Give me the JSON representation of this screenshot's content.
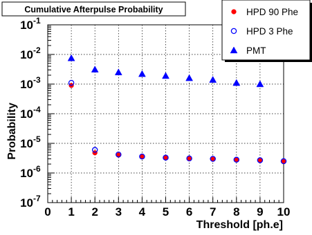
{
  "chart_data": {
    "type": "scatter",
    "title": "Cumulative Afterpulse Probability",
    "xlabel": "Threshold [ph.e]",
    "ylabel": "Probability",
    "xlim": [
      0,
      10
    ],
    "ylim": [
      1e-07,
      0.1
    ],
    "yscale": "log",
    "grid": true,
    "legend_position": "top-right",
    "x_ticks": [
      "0",
      "1",
      "2",
      "3",
      "4",
      "5",
      "6",
      "7",
      "8",
      "9",
      "10"
    ],
    "y_ticks": [
      {
        "base": "10",
        "exp": "-7",
        "value": 1e-07
      },
      {
        "base": "10",
        "exp": "-6",
        "value": 1e-06
      },
      {
        "base": "10",
        "exp": "-5",
        "value": 1e-05
      },
      {
        "base": "10",
        "exp": "-4",
        "value": 0.0001
      },
      {
        "base": "10",
        "exp": "-3",
        "value": 0.001
      },
      {
        "base": "10",
        "exp": "-2",
        "value": 0.01
      },
      {
        "base": "10",
        "exp": "-1",
        "value": 0.1
      }
    ],
    "series": [
      {
        "name": "HPD 90 Phe",
        "marker": "filled-circle",
        "color": "#ff0000",
        "x": [
          1,
          2,
          3,
          4,
          5,
          6,
          7,
          8,
          9,
          10
        ],
        "y": [
          0.0009,
          4.8e-06,
          4e-06,
          3.5e-06,
          3.2e-06,
          3e-06,
          2.9e-06,
          2.8e-06,
          2.6e-06,
          2.4e-06
        ]
      },
      {
        "name": "HPD 3 Phe",
        "marker": "open-circle",
        "color": "#0000ff",
        "x": [
          1,
          2,
          3,
          4,
          5,
          6,
          7,
          8,
          9,
          10
        ],
        "y": [
          0.0011,
          6e-06,
          4.2e-06,
          3.6e-06,
          3.3e-06,
          3.1e-06,
          3e-06,
          2.8e-06,
          2.7e-06,
          2.5e-06
        ]
      },
      {
        "name": "PMT",
        "marker": "filled-triangle",
        "color": "#0000ff",
        "x": [
          1,
          2,
          3,
          4,
          5,
          6,
          7,
          8,
          9
        ],
        "y": [
          0.0075,
          0.0031,
          0.0025,
          0.0022,
          0.0019,
          0.0016,
          0.0014,
          0.0011,
          0.001
        ]
      }
    ]
  }
}
